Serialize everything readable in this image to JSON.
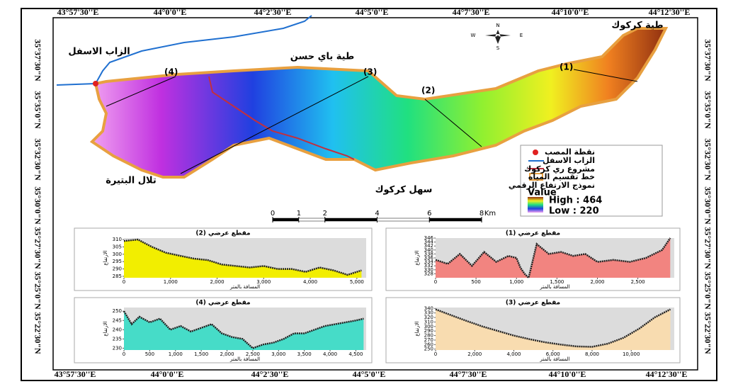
{
  "map": {
    "top_labels": [
      "43°57'30''E",
      "44°0'0''E",
      "44°2'30''E",
      "44°5'0''E",
      "44°7'30''E",
      "44°10'0''E",
      "44°12'30''E"
    ],
    "bottom_labels": [
      "43°57'30''E",
      "44°0'0''E",
      "44°2'30''E",
      "44°5'0''E",
      "44°7'30''E",
      "44°10'0''E",
      "44°12'30''E"
    ],
    "left_labels": [
      "35°37'30\"N",
      "35°35'0\"N",
      "35°32'30\"N",
      "35°30'0\"N",
      "35°27'30\"N",
      "35°25'0\"N",
      "35°22'30\"N"
    ],
    "right_labels": [
      "35°37'30\"N",
      "35°35'0\"N",
      "35°32'30\"N",
      "35°30'0\"N",
      "35°27'30\"N",
      "35°25'0\"N",
      "35°22'30\"N"
    ],
    "places": [
      "الزاب الاسفل",
      "طية باي حسن",
      "طية كركوك",
      "تلال البتيرة",
      "سهل كركوك"
    ],
    "sections": [
      "(1)",
      "(2)",
      "(3)",
      "(4)"
    ],
    "north": [
      "N",
      "S",
      "E",
      "W"
    ],
    "legend": {
      "items": [
        "نقطة المصب",
        "الزاب الاسفل",
        "مشروع ري كركوك",
        "خط تقسيم المياه"
      ],
      "dem": "نموذج الارتفاع الرقمي",
      "value": "Value",
      "high": "High : 464",
      "low": "Low : 220"
    },
    "scale": {
      "ticks": [
        0,
        1,
        2,
        4,
        6,
        8
      ],
      "unit": "Km"
    }
  },
  "chart_data": [
    {
      "type": "area",
      "title": "مقطع عرضي (2)",
      "ylabel": "الارتفاع",
      "xlabel": "المسافة بالمتر",
      "color": "#f2ee00",
      "x": [
        0,
        300,
        600,
        900,
        1200,
        1500,
        1800,
        2100,
        2400,
        2700,
        3000,
        3300,
        3600,
        3900,
        4200,
        4500,
        4800,
        5100
      ],
      "values": [
        309,
        310,
        305,
        301,
        299,
        297,
        296,
        293,
        292,
        291,
        292,
        290,
        290,
        288,
        291,
        289,
        286,
        289
      ],
      "xlim": [
        0,
        5200
      ],
      "ylim": [
        284,
        311
      ],
      "yticks": [
        285,
        290,
        295,
        300,
        305,
        310
      ],
      "xticks": [
        0,
        {
          "value": 1000,
          "label": "1,000"
        },
        {
          "value": 2000,
          "label": "2,000"
        },
        {
          "value": 3000,
          "label": "3,000"
        },
        {
          "value": 4000,
          "label": "4,000"
        },
        {
          "value": 5000,
          "label": "5,000"
        }
      ]
    },
    {
      "type": "area",
      "title": "مقطع عرضي (1)",
      "ylabel": "الارتفاع",
      "xlabel": "المسافة بالمتر",
      "color": "#f28480",
      "x": [
        0,
        150,
        300,
        450,
        600,
        750,
        900,
        1000,
        1050,
        1100,
        1150,
        1250,
        1400,
        1550,
        1700,
        1850,
        2000,
        2200,
        2400,
        2600,
        2800,
        2900
      ],
      "values": [
        335,
        333,
        338,
        332,
        339,
        334,
        337,
        336,
        331,
        328,
        326,
        343,
        338,
        339,
        337,
        338,
        334,
        335,
        334,
        336,
        340,
        346
      ],
      "xlim": [
        0,
        2950
      ],
      "ylim": [
        326,
        346
      ],
      "yticks": [
        328,
        330,
        332,
        334,
        336,
        338,
        340,
        342,
        344,
        346
      ],
      "xticks": [
        0,
        500,
        {
          "value": 1000,
          "label": "1,000"
        },
        {
          "value": 1500,
          "label": "1,500"
        },
        {
          "value": 2000,
          "label": "2,000"
        },
        {
          "value": 2500,
          "label": "2,500"
        }
      ]
    },
    {
      "type": "area",
      "title": "مقطع عرضي (4)",
      "ylabel": "الارتفاع",
      "xlabel": "المسافة بالمتر",
      "color": "#46dcc8",
      "x": [
        0,
        150,
        300,
        500,
        700,
        900,
        1100,
        1300,
        1500,
        1700,
        1900,
        2100,
        2300,
        2500,
        2700,
        2900,
        3100,
        3300,
        3500,
        3700,
        3900,
        4100,
        4300,
        4500,
        4650
      ],
      "values": [
        250,
        243,
        247,
        244,
        246,
        240,
        242,
        239,
        241,
        243,
        238,
        236,
        235,
        230,
        232,
        233,
        235,
        238,
        238,
        240,
        242,
        243,
        244,
        245,
        246
      ],
      "xlim": [
        0,
        4700
      ],
      "ylim": [
        229,
        252
      ],
      "yticks": [
        230,
        235,
        240,
        245,
        250
      ],
      "xticks": [
        0,
        500,
        {
          "value": 1000,
          "label": "1,000"
        },
        {
          "value": 1500,
          "label": "1,500"
        },
        {
          "value": 2000,
          "label": "2,000"
        },
        {
          "value": 2500,
          "label": "2,500"
        },
        {
          "value": 3000,
          "label": "3,000"
        },
        {
          "value": 3500,
          "label": "3,500"
        },
        {
          "value": 4000,
          "label": "4,000"
        },
        {
          "value": 4500,
          "label": "4,500"
        }
      ]
    },
    {
      "type": "area",
      "title": "مقطع عرضي (3)",
      "ylabel": "الارتفاع",
      "xlabel": "المسافة بالمتر",
      "color": "#f8dcb0",
      "x": [
        0,
        800,
        1600,
        2400,
        3200,
        4000,
        4800,
        5600,
        6400,
        7200,
        8000,
        8800,
        9600,
        10400,
        11200,
        12000
      ],
      "values": [
        338,
        325,
        312,
        300,
        290,
        280,
        272,
        265,
        260,
        256,
        255,
        262,
        275,
        295,
        320,
        338
      ],
      "xlim": [
        0,
        12200
      ],
      "ylim": [
        248,
        342
      ],
      "yticks": [
        250,
        260,
        270,
        280,
        290,
        300,
        310,
        320,
        330,
        340
      ],
      "xticks": [
        0,
        {
          "value": 2000,
          "label": "2,000"
        },
        {
          "value": 4000,
          "label": "4,000"
        },
        {
          "value": 6000,
          "label": "6,000"
        },
        {
          "value": 8000,
          "label": "8,000"
        },
        {
          "value": 10000,
          "label": "10,000"
        }
      ]
    }
  ]
}
